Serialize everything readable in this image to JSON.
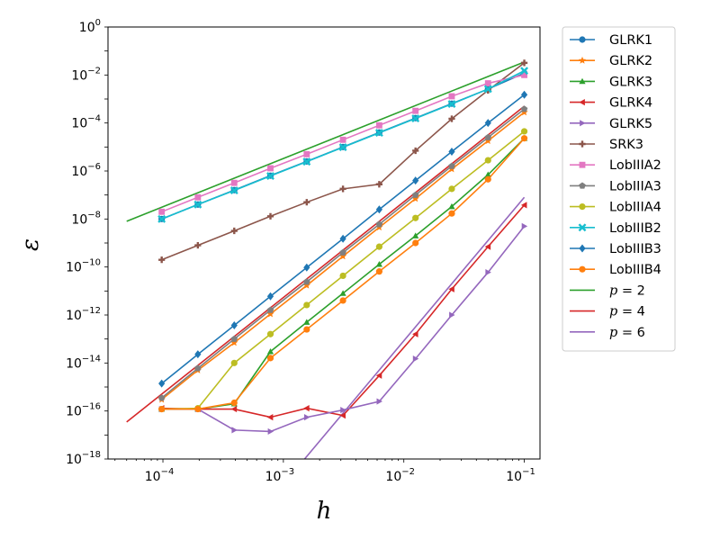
{
  "chart_data": {
    "type": "line",
    "xlabel": "h",
    "ylabel": "ε",
    "xscale": "log",
    "yscale": "log",
    "xlim": [
      3.5e-05,
      0.135
    ],
    "ylim": [
      1e-18,
      1
    ],
    "legend_position": "outside-right",
    "x_ticks": [
      {
        "value": 0.0001,
        "base": "10",
        "exp": "−4"
      },
      {
        "value": 0.001,
        "base": "10",
        "exp": "−3"
      },
      {
        "value": 0.01,
        "base": "10",
        "exp": "−2"
      },
      {
        "value": 0.1,
        "base": "10",
        "exp": "−1"
      }
    ],
    "y_ticks": [
      {
        "value": 1,
        "base": "10",
        "exp": "0"
      },
      {
        "value": 0.01,
        "base": "10",
        "exp": "−2"
      },
      {
        "value": 0.0001,
        "base": "10",
        "exp": "−4"
      },
      {
        "value": 1e-06,
        "base": "10",
        "exp": "−6"
      },
      {
        "value": 1e-08,
        "base": "10",
        "exp": "−8"
      },
      {
        "value": 1e-10,
        "base": "10",
        "exp": "−10"
      },
      {
        "value": 1e-12,
        "base": "10",
        "exp": "−12"
      },
      {
        "value": 1e-14,
        "base": "10",
        "exp": "−14"
      },
      {
        "value": 1e-16,
        "base": "10",
        "exp": "−16"
      },
      {
        "value": 1e-18,
        "base": "10",
        "exp": "−18"
      }
    ],
    "x": [
      9.77e-05,
      0.000195,
      0.000391,
      0.000781,
      0.0015625,
      0.003125,
      0.00625,
      0.0125,
      0.025,
      0.05,
      0.1
    ],
    "series": [
      {
        "name": "GLRK1",
        "color": "#1f77b4",
        "marker": "circle",
        "values": [
          1e-08,
          4e-08,
          1.6e-07,
          6.4e-07,
          2.5e-06,
          1e-05,
          4e-05,
          0.00016,
          0.00064,
          0.0026,
          0.012
        ]
      },
      {
        "name": "GLRK2",
        "color": "#ff7f0e",
        "marker": "star",
        "values": [
          3e-16,
          5e-15,
          7e-14,
          1.1e-12,
          1.7e-11,
          2.8e-10,
          4.5e-09,
          7e-08,
          1.2e-06,
          1.8e-05,
          0.00028
        ]
      },
      {
        "name": "GLRK3",
        "color": "#2ca02c",
        "marker": "triangle-up",
        "values": [
          1.2e-16,
          1.2e-16,
          2e-16,
          3e-14,
          5e-13,
          8e-12,
          1.3e-10,
          2e-09,
          3.3e-08,
          7e-07,
          2.3e-05
        ]
      },
      {
        "name": "GLRK4",
        "color": "#d62728",
        "marker": "triangle-left",
        "values": [
          1.3e-16,
          1.2e-16,
          1.2e-16,
          5.5e-17,
          1.3e-16,
          6.5e-17,
          3e-15,
          1.6e-13,
          1.2e-11,
          7e-10,
          3.8e-08
        ]
      },
      {
        "name": "GLRK5",
        "color": "#9467bd",
        "marker": "triangle-right",
        "values": [
          1.2e-16,
          1.2e-16,
          1.6e-17,
          1.4e-17,
          5.5e-17,
          1.1e-16,
          2.5e-16,
          1.5e-14,
          1e-12,
          6e-11,
          5e-09
        ]
      },
      {
        "name": "SRK3",
        "color": "#8c564b",
        "marker": "plus",
        "values": [
          2e-10,
          8e-10,
          3.2e-09,
          1.3e-08,
          5e-08,
          1.8e-07,
          2.8e-07,
          7e-06,
          0.00015,
          0.0023,
          0.032
        ]
      },
      {
        "name": "LobIIIA2",
        "color": "#e377c2",
        "marker": "square",
        "values": [
          2e-08,
          8e-08,
          3.2e-07,
          1.3e-06,
          5e-06,
          2e-05,
          8e-05,
          0.00032,
          0.0013,
          0.0045,
          0.01
        ]
      },
      {
        "name": "LobIIIA3",
        "color": "#7f7f7f",
        "marker": "pentagon",
        "values": [
          3.5e-16,
          6e-15,
          1e-13,
          1.6e-12,
          2.4e-11,
          4e-10,
          6e-09,
          1e-07,
          1.6e-06,
          2.5e-05,
          0.00038
        ]
      },
      {
        "name": "LobIIIA4",
        "color": "#bcbd22",
        "marker": "circle",
        "values": [
          1.2e-16,
          1.3e-16,
          1e-14,
          1.6e-13,
          2.6e-12,
          4.3e-11,
          7e-10,
          1.1e-08,
          1.8e-07,
          2.8e-06,
          4.5e-05
        ]
      },
      {
        "name": "LobIIIB2",
        "color": "#17becf",
        "marker": "x",
        "values": [
          1e-08,
          4e-08,
          1.55e-07,
          6.2e-07,
          2.45e-06,
          9.8e-06,
          3.9e-05,
          0.000155,
          0.00062,
          0.0026,
          0.015
        ]
      },
      {
        "name": "LobIIIB3",
        "color": "#1f77b4",
        "marker": "diamond",
        "values": [
          1.4e-15,
          2.3e-14,
          3.7e-13,
          6e-12,
          9.5e-11,
          1.5e-09,
          2.5e-08,
          4e-07,
          6.4e-06,
          0.0001,
          0.0015
        ]
      },
      {
        "name": "LobIIIB4",
        "color": "#ff7f0e",
        "marker": "circle",
        "values": [
          1.2e-16,
          1.2e-16,
          2.2e-16,
          1.6e-14,
          2.5e-13,
          4e-12,
          6.5e-11,
          1e-09,
          1.7e-08,
          4.5e-07,
          2.3e-05
        ]
      }
    ],
    "reference_lines": [
      {
        "name": "p = 2",
        "label_p": "p",
        "label_rest": " = 2",
        "color": "#2ca02c",
        "x": [
          5e-05,
          0.1
        ],
        "values": [
          8e-09,
          0.035
        ]
      },
      {
        "name": "p = 4",
        "label_p": "p",
        "label_rest": " = 4",
        "color": "#d62728",
        "x": [
          5e-05,
          0.1
        ],
        "values": [
          3.5e-17,
          0.0005
        ]
      },
      {
        "name": "p = 6",
        "label_p": "p",
        "label_rest": " = 6",
        "color": "#9467bd",
        "x": [
          0.0015,
          0.1
        ],
        "values": [
          1e-18,
          8e-08
        ]
      }
    ]
  }
}
